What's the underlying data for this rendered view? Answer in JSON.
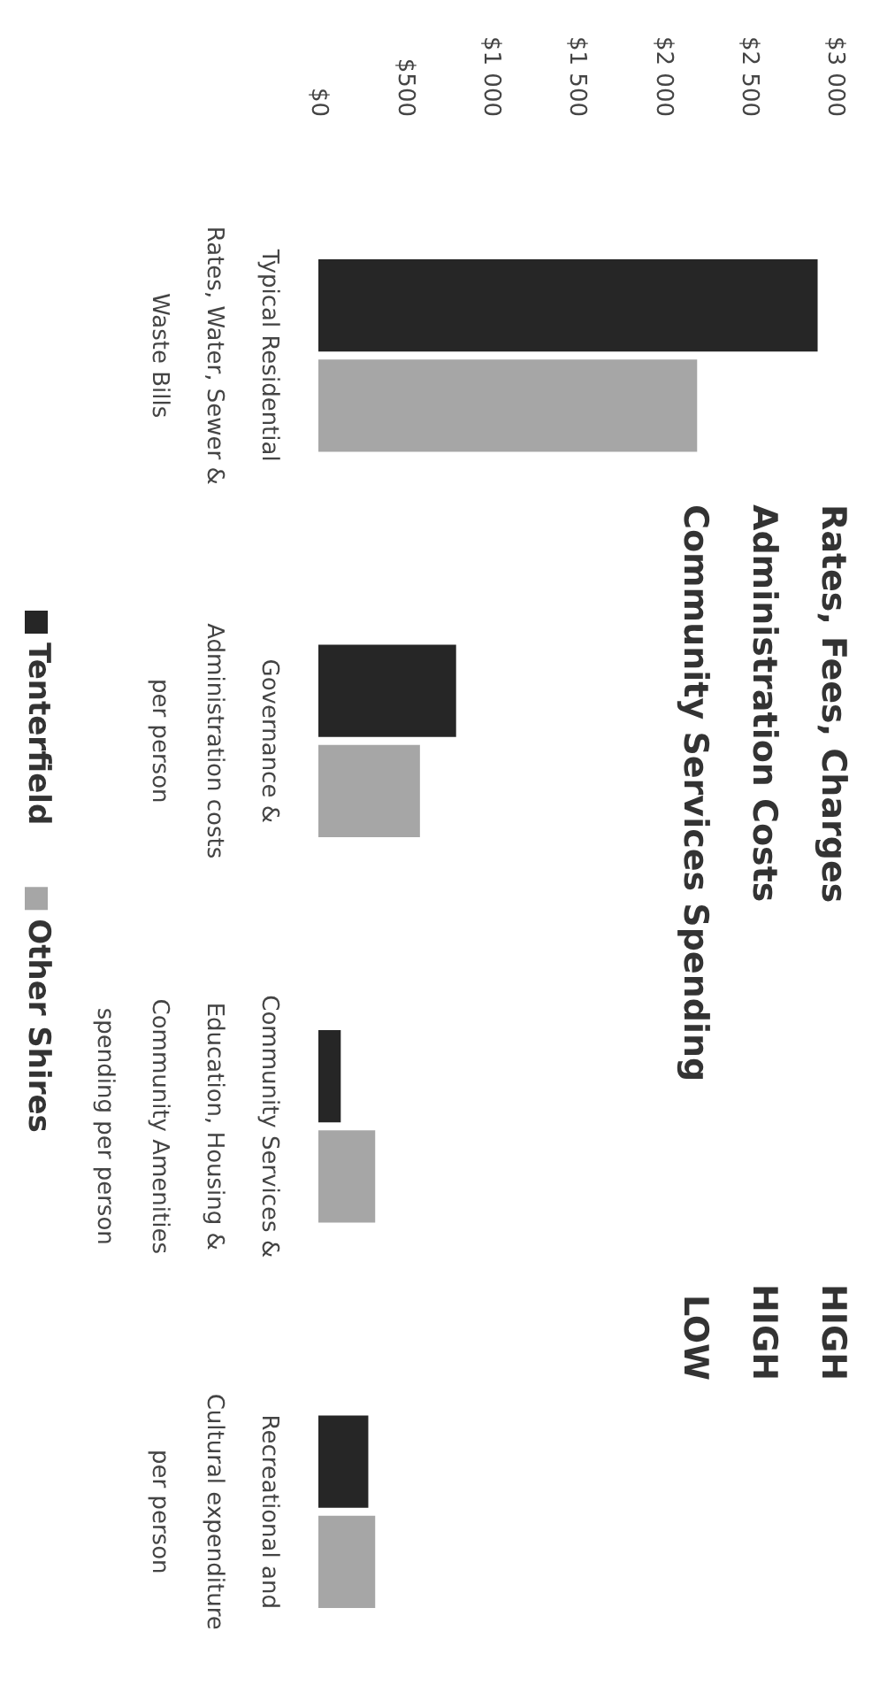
{
  "chart_data": {
    "type": "bar",
    "title": "Rates, Fees, Charges HIGH\nAdministration Costs HIGH\nCommunity Services Spending LOW",
    "categories": [
      "Typical Residential Rates, Water, Sewer & Waste Bills",
      "Governance & Administration costs per person",
      "Community Services & Education, Housing & Community Amenities spending per person",
      "Recreational and Cultural expenditure per person"
    ],
    "series": [
      {
        "name": "Tenterfield",
        "color": "#262626",
        "values": [
          2900,
          800,
          130,
          290
        ]
      },
      {
        "name": "Other Shires",
        "color": "#a6a6a6",
        "values": [
          2200,
          590,
          330,
          330
        ]
      }
    ],
    "orientation": "horizontal",
    "xlim": [
      0,
      3000
    ],
    "xticks": [
      {
        "value": 0,
        "label": "$0"
      },
      {
        "value": 500,
        "label": "$500"
      },
      {
        "value": 1000,
        "label": "$1 000"
      },
      {
        "value": 1500,
        "label": "$1 500"
      },
      {
        "value": 2000,
        "label": "$2 000"
      },
      {
        "value": 2500,
        "label": "$2 500"
      },
      {
        "value": 3000,
        "label": "$3 000"
      }
    ],
    "grid": false,
    "legend": "left"
  }
}
